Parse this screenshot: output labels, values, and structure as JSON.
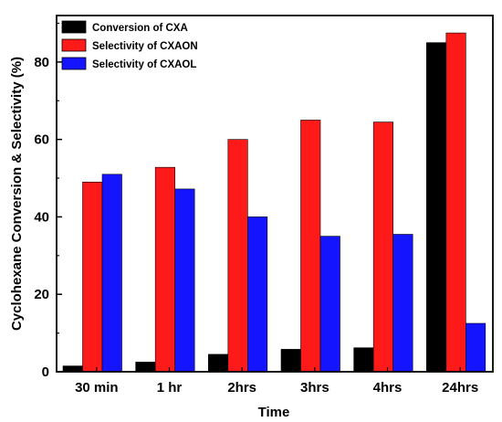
{
  "chart_data": {
    "type": "bar",
    "categories": [
      "30 min",
      "1 hr",
      "2hrs",
      "3hrs",
      "4hrs",
      "24hrs"
    ],
    "series": [
      {
        "name": "Conversion of CXA",
        "values": [
          1.5,
          2.5,
          4.5,
          5.8,
          6.2,
          85
        ],
        "color": "#000000"
      },
      {
        "name": "Selectivity of CXAON",
        "values": [
          49,
          52.8,
          60,
          65,
          64.5,
          87.5
        ],
        "color": "#ff1a1a"
      },
      {
        "name": "Selectivity of CXAOL",
        "values": [
          51,
          47.2,
          40,
          35,
          35.5,
          12.5
        ],
        "color": "#1414ff"
      }
    ],
    "xlabel": "Time",
    "ylabel": "Cyclohexane Conversion & Selectivity (%)",
    "ylim": [
      0,
      92
    ],
    "yticks": [
      0,
      20,
      40,
      60,
      80
    ],
    "legend_position": "top-left",
    "grid": false
  }
}
